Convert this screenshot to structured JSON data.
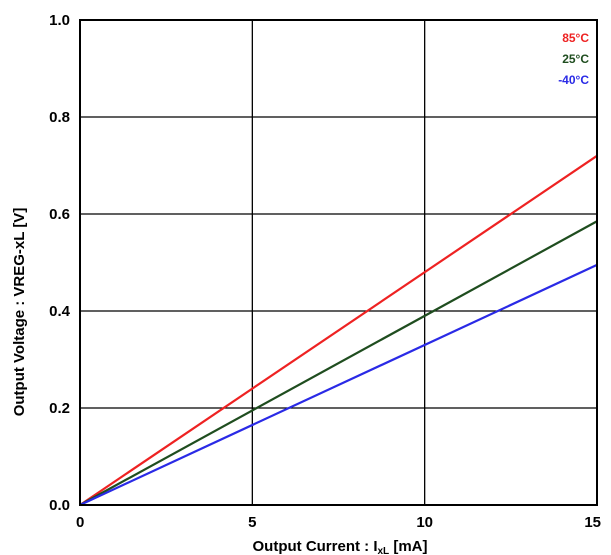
{
  "chart_data": {
    "type": "line",
    "title": "",
    "xlabel": "Output Current : I",
    "xlabel_subscript": "xL",
    "xlabel_unit": " [mA]",
    "ylabel": "Output Voltage : VREG-xL [V]",
    "xlim": [
      0,
      15
    ],
    "ylim": [
      0,
      1.0
    ],
    "x_ticks": [
      0,
      5,
      10,
      15
    ],
    "x_tick_labels": [
      "0",
      "5",
      "10",
      "15"
    ],
    "y_ticks": [
      0,
      0.2,
      0.4,
      0.6,
      0.8,
      1.0
    ],
    "y_tick_labels": [
      "0.0",
      "0.2",
      "0.4",
      "0.6",
      "0.8",
      "1.0"
    ],
    "grid": true,
    "legend_position": "top-right",
    "series": [
      {
        "name": "85°C",
        "color": "#ee2222",
        "x": [
          0,
          15
        ],
        "y": [
          0,
          0.72
        ]
      },
      {
        "name": "25°C",
        "color": "#1f4d1f",
        "x": [
          0,
          15
        ],
        "y": [
          0,
          0.585
        ]
      },
      {
        "name": "-40°C",
        "color": "#2a2ae6",
        "x": [
          0,
          15
        ],
        "y": [
          0,
          0.495
        ]
      }
    ]
  }
}
